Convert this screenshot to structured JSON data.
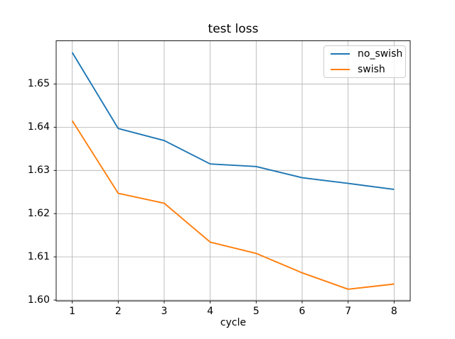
{
  "chart_data": {
    "type": "line",
    "title": "test loss",
    "xlabel": "cycle",
    "ylabel": "",
    "x": [
      1,
      2,
      3,
      4,
      5,
      6,
      7,
      8
    ],
    "series": [
      {
        "name": "no_swish",
        "color": "#1f77b4",
        "values": [
          1.6573,
          1.6397,
          1.6369,
          1.6315,
          1.6309,
          1.6283,
          1.627,
          1.6256
        ]
      },
      {
        "name": "swish",
        "color": "#ff7f0e",
        "values": [
          1.6415,
          1.6247,
          1.6224,
          1.6134,
          1.6108,
          1.6063,
          1.6025,
          1.6037
        ]
      }
    ],
    "xticks": [
      1,
      2,
      3,
      4,
      5,
      6,
      7,
      8
    ],
    "xtick_labels": [
      "1",
      "2",
      "3",
      "4",
      "5",
      "6",
      "7",
      "8"
    ],
    "yticks": [
      1.6,
      1.61,
      1.62,
      1.63,
      1.64,
      1.65
    ],
    "ytick_labels": [
      "1.60",
      "1.61",
      "1.62",
      "1.63",
      "1.64",
      "1.65"
    ],
    "xlim": [
      0.65,
      8.35
    ],
    "ylim": [
      1.5998,
      1.66
    ],
    "grid": true,
    "grid_color": "#b0b0b0",
    "spine_color": "#000000",
    "background": "#ffffff",
    "legend_position": "upper right"
  }
}
